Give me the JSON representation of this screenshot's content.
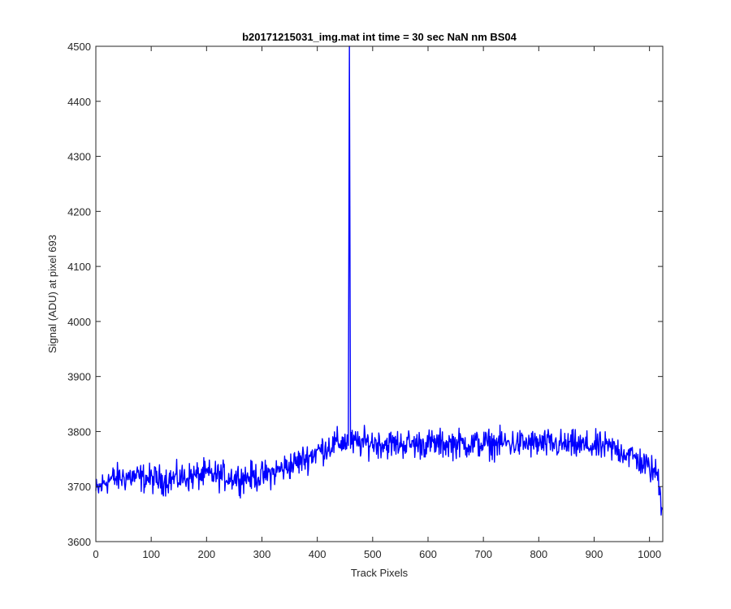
{
  "chart_data": {
    "type": "line",
    "title": "b20171215031_img.mat int time = 30 sec  NaN nm BS04",
    "xlabel": "Track Pixels",
    "ylabel": "Signal (ADU) at pixel 693",
    "xlim": [
      0,
      1024
    ],
    "ylim": [
      3600,
      4500
    ],
    "xticks": [
      0,
      100,
      200,
      300,
      400,
      500,
      600,
      700,
      800,
      900,
      1000
    ],
    "yticks": [
      3600,
      3700,
      3800,
      3900,
      4000,
      4100,
      4200,
      4300,
      4400,
      4500
    ],
    "grid": false,
    "legend": "none",
    "series": [
      {
        "color": "#0000ff",
        "x": [
          0,
          20,
          40,
          60,
          80,
          100,
          120,
          140,
          160,
          180,
          200,
          220,
          240,
          260,
          280,
          300,
          320,
          340,
          360,
          380,
          400,
          420,
          440,
          456,
          458,
          460,
          462,
          480,
          500,
          520,
          540,
          560,
          580,
          600,
          620,
          640,
          660,
          680,
          700,
          720,
          740,
          760,
          780,
          800,
          820,
          840,
          860,
          880,
          900,
          920,
          940,
          960,
          980,
          1000,
          1015,
          1023
        ],
        "y": [
          3690,
          3712,
          3715,
          3718,
          3716,
          3714,
          3712,
          3714,
          3716,
          3719,
          3722,
          3720,
          3718,
          3716,
          3718,
          3719,
          3725,
          3734,
          3742,
          3752,
          3764,
          3773,
          3780,
          3782,
          4500,
          3781,
          3778,
          3779,
          3780,
          3778,
          3777,
          3778,
          3777,
          3778,
          3777,
          3778,
          3778,
          3777,
          3778,
          3777,
          3779,
          3778,
          3778,
          3777,
          3777,
          3776,
          3775,
          3774,
          3773,
          3771,
          3768,
          3760,
          3748,
          3733,
          3722,
          3658
        ]
      }
    ]
  }
}
